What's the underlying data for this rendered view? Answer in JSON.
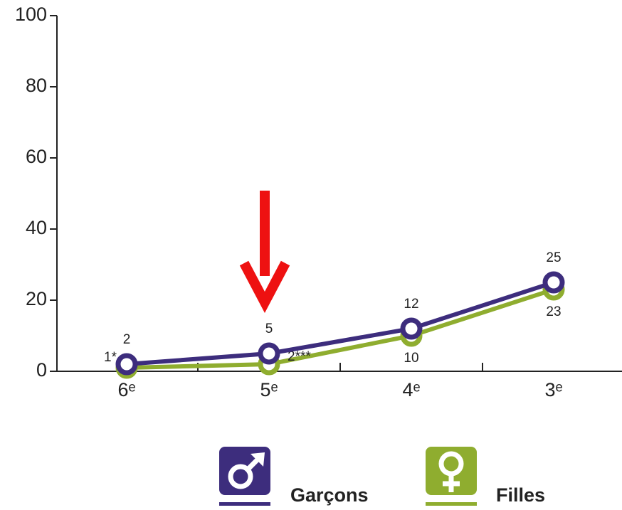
{
  "chart_data": {
    "type": "line",
    "categories": [
      "6ᵉ",
      "5ᵉ",
      "4ᵉ",
      "3ᵉ"
    ],
    "series": [
      {
        "name": "Garçons",
        "color": "#3d2d7d",
        "values": [
          2,
          5,
          12,
          25
        ]
      },
      {
        "name": "Filles",
        "color": "#8fad2f",
        "values": [
          1,
          2,
          10,
          23
        ],
        "value_labels": [
          "1*",
          "2***",
          "10",
          "23"
        ]
      }
    ],
    "ylim": [
      0,
      100
    ],
    "yticks": [
      0,
      20,
      40,
      60,
      80,
      100
    ]
  }
}
